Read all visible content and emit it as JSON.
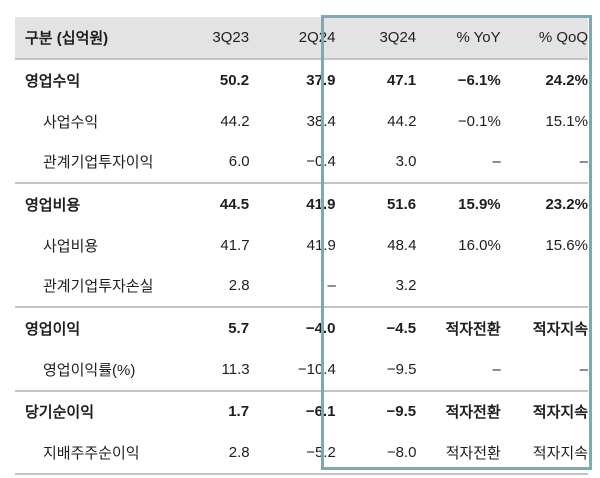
{
  "header": [
    "구분 (십억원)",
    "3Q23",
    "2Q24",
    "3Q24",
    "% YoY",
    "% QoQ"
  ],
  "rows": [
    {
      "label": "영업수익",
      "values": [
        "50.2",
        "37.9",
        "47.1",
        "−6.1%",
        "24.2%"
      ],
      "bold": true
    },
    {
      "label": "사업수익",
      "values": [
        "44.2",
        "38.4",
        "44.2",
        "−0.1%",
        "15.1%"
      ],
      "bold": false
    },
    {
      "label": "관계기업투자이익",
      "values": [
        "6.0",
        "−0.4",
        "3.0",
        "–",
        "–"
      ],
      "bold": false
    },
    {
      "label": "영업비용",
      "values": [
        "44.5",
        "41.9",
        "51.6",
        "15.9%",
        "23.2%"
      ],
      "bold": true
    },
    {
      "label": "사업비용",
      "values": [
        "41.7",
        "41.9",
        "48.4",
        "16.0%",
        "15.6%"
      ],
      "bold": false
    },
    {
      "label": "관계기업투자손실",
      "values": [
        "2.8",
        "–",
        "3.2",
        "",
        ""
      ],
      "bold": false
    },
    {
      "label": "영업이익",
      "values": [
        "5.7",
        "−4.0",
        "−4.5",
        "적자전환",
        "적자지속"
      ],
      "bold": true
    },
    {
      "label": "영업이익률(%)",
      "values": [
        "11.3",
        "−10.4",
        "−9.5",
        "–",
        "–"
      ],
      "bold": false
    },
    {
      "label": "당기순이익",
      "values": [
        "1.7",
        "−6.1",
        "−9.5",
        "적자전환",
        "적자지속"
      ],
      "bold": true
    },
    {
      "label": "지배주주순이익",
      "values": [
        "2.8",
        "−5.2",
        "−8.0",
        "적자전환",
        "적자지속"
      ],
      "bold": false
    }
  ],
  "colors": {
    "highlight_border": "#7ea9b1",
    "header_bg": "#e3e3e3"
  }
}
